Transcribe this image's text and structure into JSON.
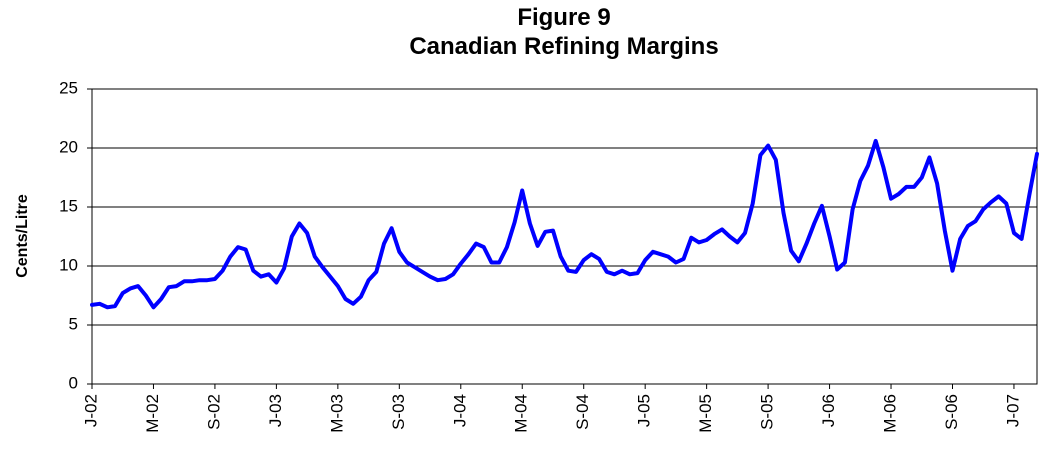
{
  "chart_data": {
    "type": "line",
    "title": "Figure 9",
    "subtitle": "Canadian Refining Margins",
    "y_label": "Cents/Litre",
    "categories": [
      "J-02",
      null,
      null,
      null,
      null,
      null,
      null,
      null,
      "M-02",
      null,
      null,
      null,
      null,
      null,
      null,
      null,
      "S-02",
      null,
      null,
      null,
      null,
      null,
      null,
      null,
      "J-03",
      null,
      null,
      null,
      null,
      null,
      null,
      null,
      "M-03",
      null,
      null,
      null,
      null,
      null,
      null,
      null,
      "S-03",
      null,
      null,
      null,
      null,
      null,
      null,
      null,
      "J-04",
      null,
      null,
      null,
      null,
      null,
      null,
      null,
      "M-04",
      null,
      null,
      null,
      null,
      null,
      null,
      null,
      "S-04",
      null,
      null,
      null,
      null,
      null,
      null,
      null,
      "J-05",
      null,
      null,
      null,
      null,
      null,
      null,
      null,
      "M-05",
      null,
      null,
      null,
      null,
      null,
      null,
      null,
      "S-05",
      null,
      null,
      null,
      null,
      null,
      null,
      null,
      "J-06",
      null,
      null,
      null,
      null,
      null,
      null,
      null,
      "M-06",
      null,
      null,
      null,
      null,
      null,
      null,
      null,
      "S-06",
      null,
      null,
      null,
      null,
      null,
      null,
      null,
      "J-07",
      null,
      null,
      null
    ],
    "values": [
      6.7,
      6.8,
      6.5,
      6.6,
      7.7,
      8.1,
      8.3,
      7.5,
      6.5,
      7.2,
      8.2,
      8.3,
      8.7,
      8.7,
      8.8,
      8.8,
      8.9,
      9.6,
      10.8,
      11.6,
      11.4,
      9.6,
      9.1,
      9.3,
      8.6,
      9.8,
      12.5,
      13.6,
      12.8,
      10.8,
      9.9,
      9.1,
      8.3,
      7.2,
      6.8,
      7.4,
      8.8,
      9.5,
      11.9,
      13.2,
      11.2,
      10.3,
      9.9,
      9.5,
      9.1,
      8.8,
      8.9,
      9.3,
      10.2,
      11.0,
      11.9,
      11.6,
      10.3,
      10.3,
      11.6,
      13.7,
      16.4,
      13.6,
      11.7,
      12.9,
      13.0,
      10.8,
      9.6,
      9.5,
      10.5,
      11.0,
      10.6,
      9.5,
      9.3,
      9.6,
      9.3,
      9.4,
      10.5,
      11.2,
      11.0,
      10.8,
      10.3,
      10.6,
      12.4,
      12.0,
      12.2,
      12.7,
      13.1,
      12.5,
      12.0,
      12.8,
      15.3,
      19.4,
      20.2,
      19.0,
      14.5,
      11.3,
      10.4,
      11.9,
      13.6,
      15.1,
      12.5,
      9.7,
      10.3,
      14.8,
      17.2,
      18.5,
      20.6,
      18.4,
      15.7,
      16.1,
      16.7,
      16.7,
      17.5,
      19.2,
      17.0,
      13.0,
      9.6,
      12.3,
      13.4,
      13.8,
      14.8,
      15.4,
      15.9,
      15.3,
      12.8,
      12.3,
      16.0,
      19.5
    ],
    "color": "#0000ff",
    "ylim": [
      0,
      25
    ],
    "yticks": [
      0,
      5,
      10,
      15,
      20,
      25
    ],
    "grid": true
  }
}
